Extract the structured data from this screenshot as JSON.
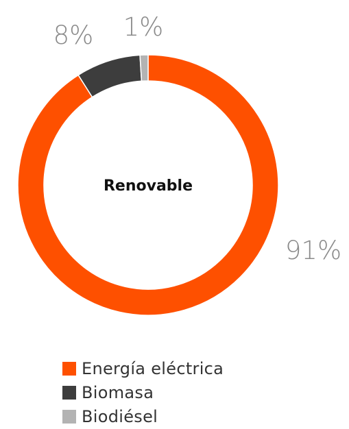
{
  "chart_data": {
    "type": "pie",
    "donut": true,
    "center_label": "Renovable",
    "slices": [
      {
        "name": "Energía eléctrica",
        "value": 91,
        "label": "91%",
        "color": "#fe5000"
      },
      {
        "name": "Biomasa",
        "value": 8,
        "label": "8%",
        "color": "#3d3d3d"
      },
      {
        "name": "Biodiésel",
        "value": 1,
        "label": "1%",
        "color": "#b3b3b3"
      }
    ],
    "legend_position": "bottom"
  }
}
